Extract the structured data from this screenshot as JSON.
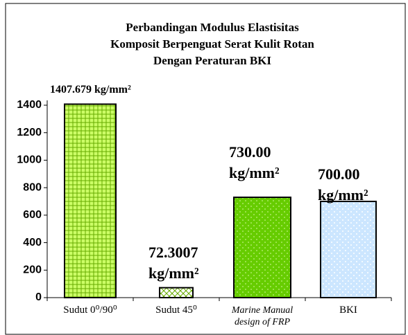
{
  "chart_data": {
    "type": "bar",
    "title": [
      "Perbandingan Modulus Elastisitas",
      "Komposit Berpenguat Serat Kulit Rotan",
      "Dengan Peraturan BKI"
    ],
    "categories": [
      "Sudut 0⁰/90⁰",
      "Sudut 45⁰",
      "Marine Manual design of FRP",
      "BKI"
    ],
    "values": [
      1407.679,
      72.3007,
      730.0,
      700.0
    ],
    "value_labels": [
      "1407.679 kg/mm²",
      "72.3007 kg/mm²",
      "730.00 kg/mm²",
      "700.00 kg/mm²"
    ],
    "colors": [
      "#ccff66",
      "#ffffff",
      "#66cc00",
      "#cce6ff"
    ],
    "ylim": [
      0,
      1400
    ],
    "yticks": [
      0,
      200,
      400,
      600,
      800,
      1000,
      1200,
      1400
    ],
    "grid": false
  }
}
